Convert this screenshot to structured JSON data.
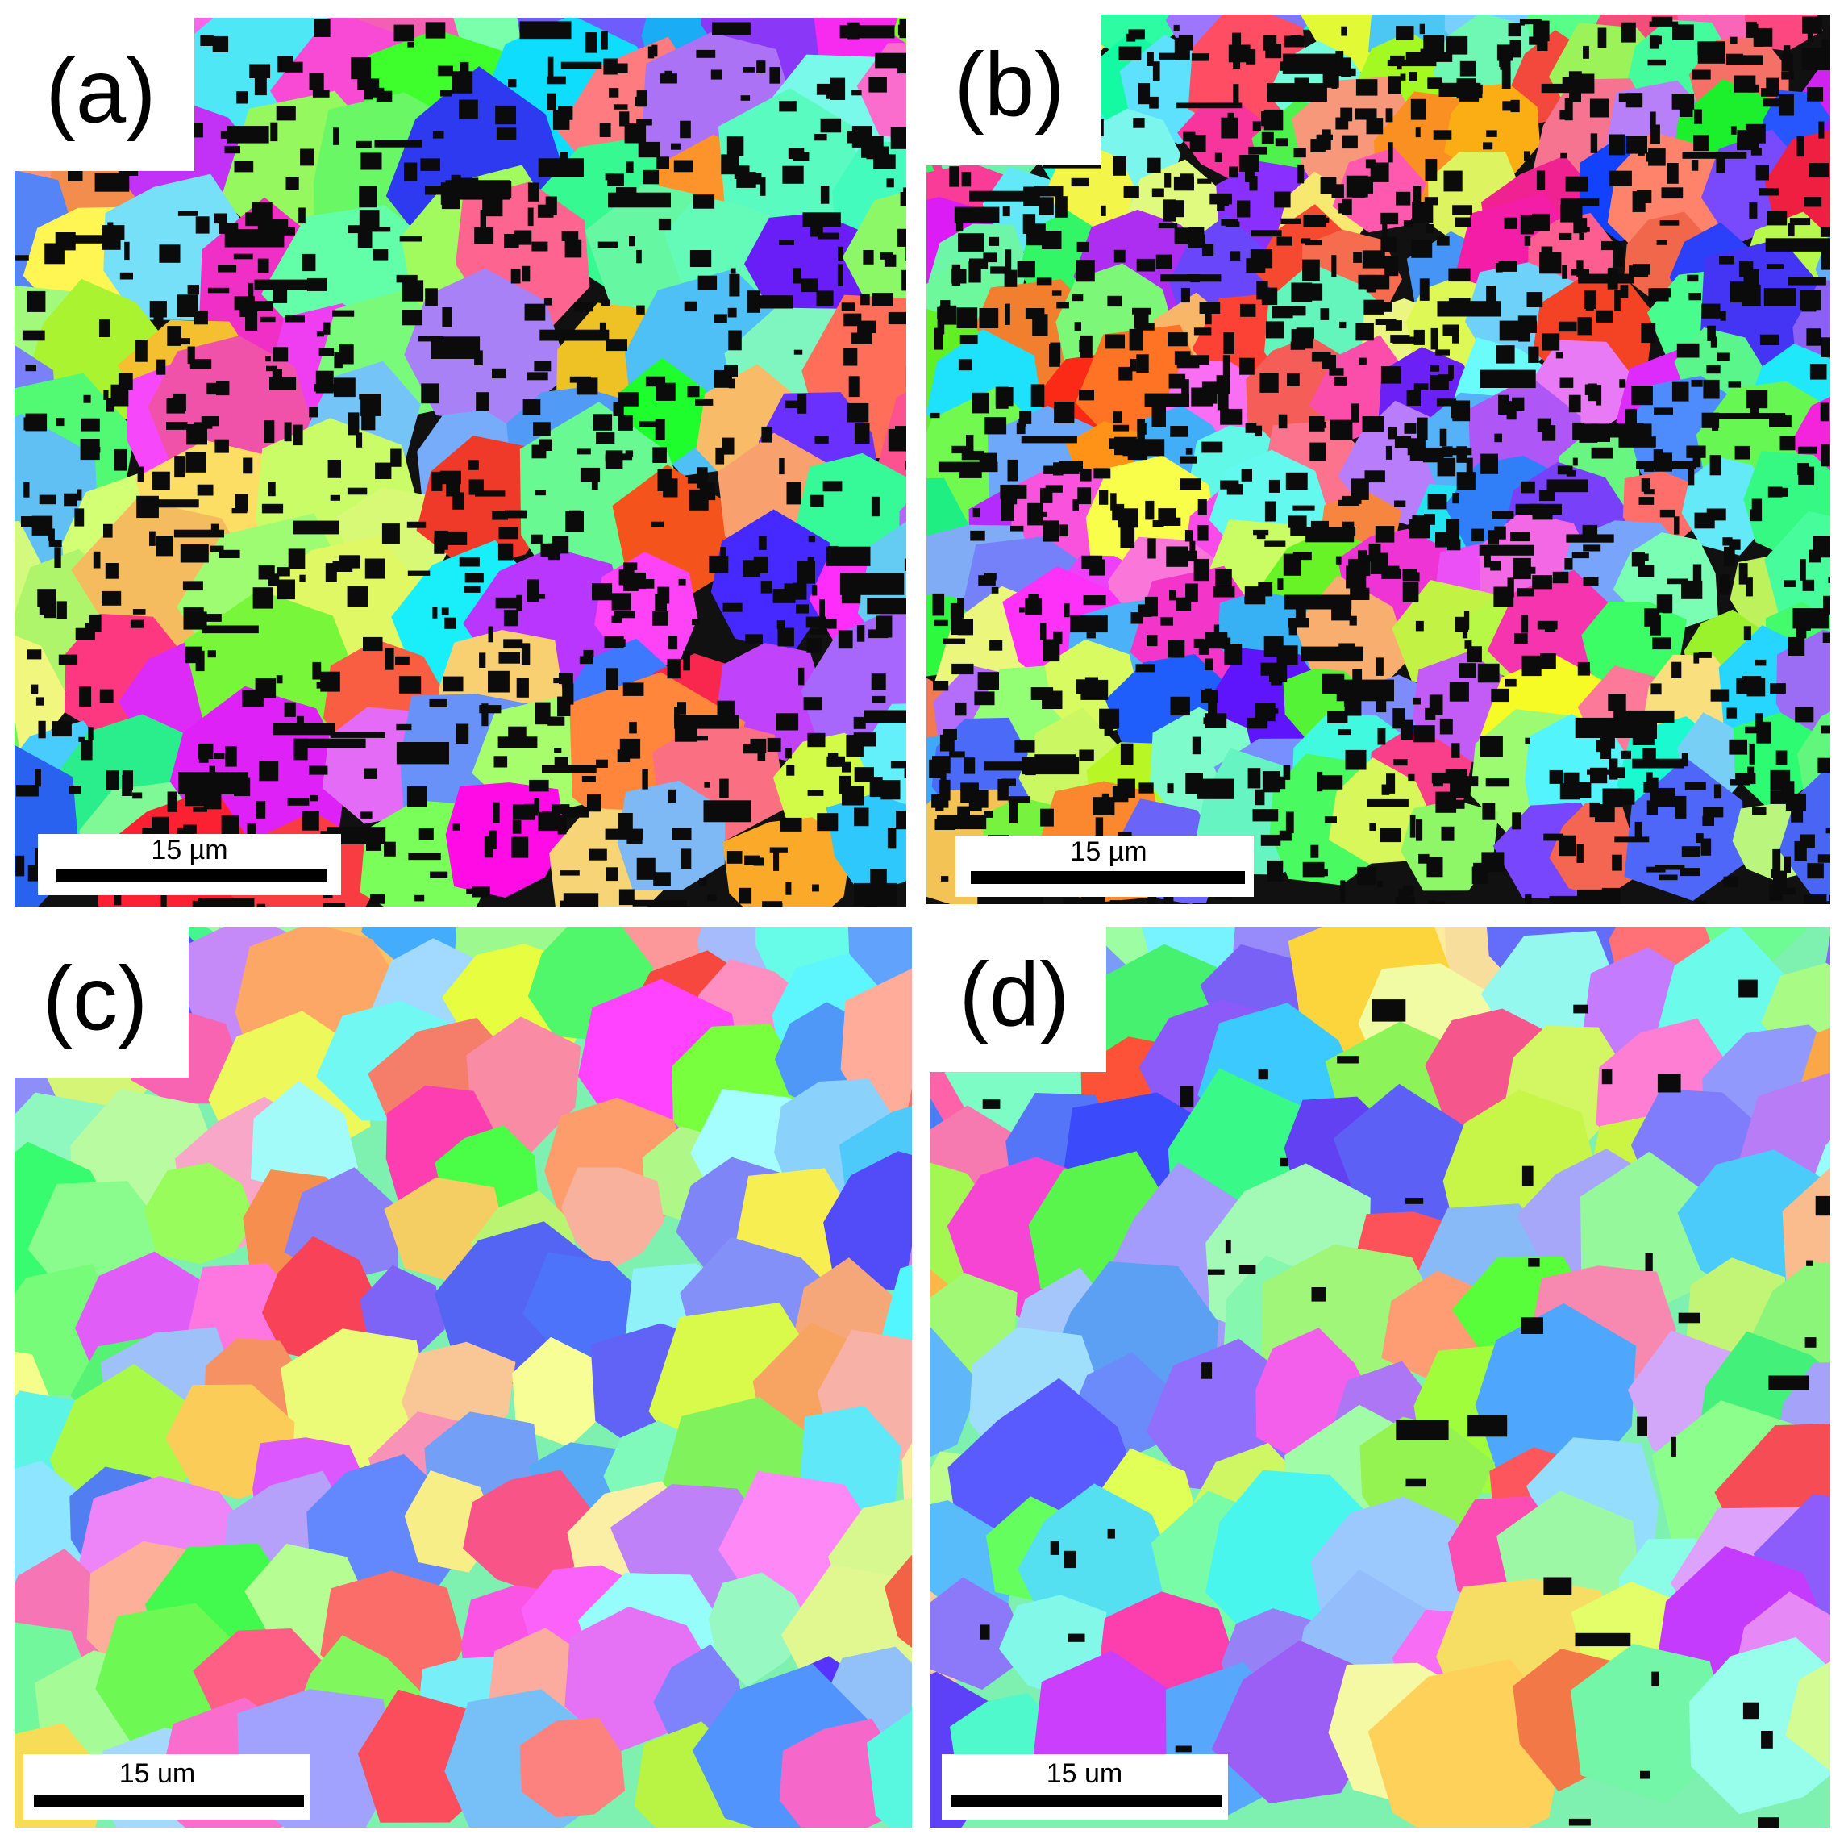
{
  "panels": [
    {
      "label": "(a)",
      "scale_bar": "15 µm"
    },
    {
      "label": "(b)",
      "scale_bar": "15 µm"
    },
    {
      "label": "(c)",
      "scale_bar": "15 um"
    },
    {
      "label": "(d)",
      "scale_bar": "15 um"
    }
  ]
}
